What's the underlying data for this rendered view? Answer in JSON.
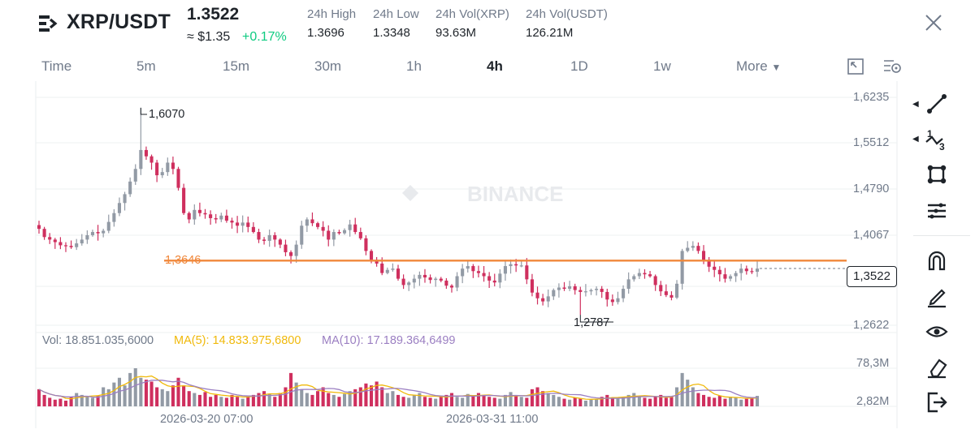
{
  "header": {
    "pair": "XRP/USDT",
    "last_price": "1.3522",
    "approx_usd": "≈ $1.35",
    "change_pct": "+0.17%",
    "stats": [
      {
        "label": "24h High",
        "value": "1.3696"
      },
      {
        "label": "24h Low",
        "value": "1.3348"
      },
      {
        "label": "24h Vol(XRP)",
        "value": "93.63M"
      },
      {
        "label": "24h Vol(USDT)",
        "value": "126.21M"
      }
    ]
  },
  "tabs": [
    {
      "label": "Time",
      "active": false
    },
    {
      "label": "5m",
      "active": false
    },
    {
      "label": "15m",
      "active": false
    },
    {
      "label": "30m",
      "active": false
    },
    {
      "label": "1h",
      "active": false
    },
    {
      "label": "4h",
      "active": true
    },
    {
      "label": "1D",
      "active": false
    },
    {
      "label": "1w",
      "active": false
    },
    {
      "label": "More",
      "active": false
    }
  ],
  "chart": {
    "watermark": "BINANCE",
    "y_ticks": [
      "1,6235",
      "1,5512",
      "1,4790",
      "1,4067",
      "1,2622"
    ],
    "high_label": "1,6070",
    "low_label": "1,2787",
    "hline_label": "1,3646",
    "current_label": "1,3522",
    "vol_legend": {
      "vol": "Vol: 18.851.035,6000",
      "ma5": "MA(5): 14.833.975,6800",
      "ma10": "MA(10): 17.189.364,6499"
    },
    "vol_ticks": [
      "78,3M",
      "2,82M"
    ],
    "x_ticks": [
      "2026-03-20 07:00",
      "2026-03-31 11:00"
    ],
    "colors": {
      "up": "#929aa5",
      "down": "#cf2f5e",
      "hline": "#f0873a",
      "ma5": "#f0b90b",
      "ma10": "#9b7fc2"
    }
  },
  "chart_data": {
    "type": "candlestick",
    "interval": "4h",
    "ylim": [
      1.2622,
      1.6235
    ],
    "annotations": {
      "high": 1.607,
      "low": 1.2787,
      "horizontal_line": 1.3646,
      "current": 1.3522
    },
    "closes": [
      1.415,
      1.402,
      1.398,
      1.394,
      1.389,
      1.388,
      1.386,
      1.392,
      1.398,
      1.405,
      1.41,
      1.408,
      1.412,
      1.426,
      1.44,
      1.456,
      1.47,
      1.49,
      1.51,
      1.54,
      1.53,
      1.52,
      1.5,
      1.505,
      1.52,
      1.51,
      1.48,
      1.44,
      1.43,
      1.445,
      1.44,
      1.438,
      1.432,
      1.43,
      1.436,
      1.428,
      1.425,
      1.42,
      1.425,
      1.418,
      1.41,
      1.398,
      1.396,
      1.405,
      1.398,
      1.39,
      1.378,
      1.372,
      1.39,
      1.42,
      1.43,
      1.424,
      1.418,
      1.412,
      1.398,
      1.41,
      1.408,
      1.413,
      1.422,
      1.41,
      1.4,
      1.38,
      1.366,
      1.36,
      1.345,
      1.35,
      1.352,
      1.336,
      1.326,
      1.33,
      1.336,
      1.342,
      1.338,
      1.334,
      1.336,
      1.333,
      1.325,
      1.322,
      1.34,
      1.352,
      1.356,
      1.348,
      1.345,
      1.34,
      1.333,
      1.33,
      1.344,
      1.356,
      1.359,
      1.357,
      1.357,
      1.335,
      1.314,
      1.305,
      1.3,
      1.308,
      1.318,
      1.322,
      1.32,
      1.324,
      1.318,
      1.315,
      1.316,
      1.318,
      1.32,
      1.315,
      1.303,
      1.299,
      1.305,
      1.32,
      1.335,
      1.34,
      1.345,
      1.343,
      1.34,
      1.326,
      1.316,
      1.31,
      1.306,
      1.328,
      1.38,
      1.385,
      1.388,
      1.38,
      1.366,
      1.355,
      1.35,
      1.343,
      1.336,
      1.34,
      1.345,
      1.352,
      1.348,
      1.347,
      1.352
    ],
    "volumes": [
      18,
      12,
      9,
      7,
      8,
      6,
      10,
      14,
      12,
      10,
      9,
      11,
      20,
      18,
      25,
      30,
      22,
      35,
      40,
      30,
      28,
      26,
      20,
      18,
      16,
      22,
      30,
      22,
      16,
      14,
      12,
      15,
      10,
      12,
      10,
      9,
      12,
      10,
      8,
      11,
      12,
      14,
      16,
      13,
      10,
      14,
      20,
      35,
      25,
      18,
      14,
      12,
      16,
      20,
      14,
      12,
      10,
      13,
      16,
      18,
      20,
      24,
      22,
      26,
      20,
      14,
      16,
      12,
      10,
      9,
      12,
      14,
      10,
      9,
      8,
      10,
      12,
      14,
      10,
      9,
      13,
      11,
      14,
      12,
      10,
      9,
      8,
      12,
      15,
      11,
      10,
      9,
      18,
      20,
      16,
      14,
      12,
      10,
      8,
      7,
      9,
      8,
      6,
      7,
      8,
      10,
      12,
      9,
      8,
      10,
      12,
      14,
      11,
      9,
      8,
      10,
      12,
      9,
      10,
      20,
      35,
      28,
      20,
      14,
      12,
      10,
      9,
      11,
      8,
      10,
      9,
      7,
      8,
      9,
      11
    ]
  },
  "toolbar": {
    "icons": [
      "line-tool-icon",
      "fib-tool-icon",
      "shape-tool-icon",
      "indicator-tool-icon",
      "magnet-icon",
      "pencil-icon",
      "eye-icon",
      "eraser-icon",
      "exit-icon"
    ]
  }
}
